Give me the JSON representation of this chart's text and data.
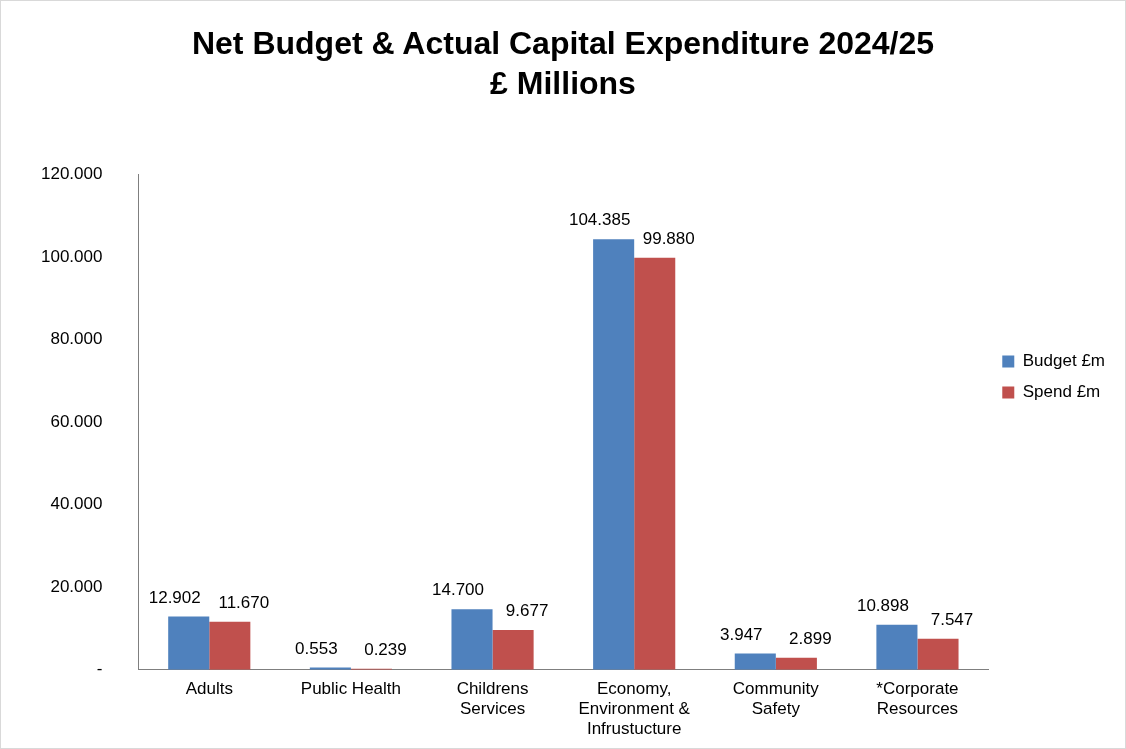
{
  "chart_data": {
    "type": "bar",
    "title": "Net Budget & Actual Capital Expenditure 2024/25",
    "subtitle": "£ Millions",
    "categories": [
      "Adults",
      "Public Health",
      "Childrens Services",
      "Economy, Environment & Infrustucture",
      "Community Safety",
      "*Corporate Resources"
    ],
    "series": [
      {
        "name": "Budget £m",
        "color": "#4f81bd",
        "values": [
          12.902,
          0.553,
          14.7,
          104.385,
          3.947,
          10.898
        ],
        "value_labels": [
          "12.902",
          "0.553",
          "14.700",
          "104.385",
          "3.947",
          "10.898"
        ]
      },
      {
        "name": "Spend £m",
        "color": "#c0504d",
        "values": [
          11.67,
          0.239,
          9.677,
          99.88,
          2.899,
          7.547
        ],
        "value_labels": [
          "11.670",
          "0.239",
          "9.677",
          "99.880",
          "2.899",
          "7.547"
        ]
      }
    ],
    "ylim": [
      0,
      120
    ],
    "yticks": [
      {
        "value": 0,
        "label": "-"
      },
      {
        "value": 20,
        "label": "20.000"
      },
      {
        "value": 40,
        "label": "40.000"
      },
      {
        "value": 60,
        "label": "60.000"
      },
      {
        "value": 80,
        "label": "80.000"
      },
      {
        "value": 100,
        "label": "100.000"
      },
      {
        "value": 120,
        "label": "120.000"
      }
    ],
    "grid": false,
    "legend": "right"
  }
}
